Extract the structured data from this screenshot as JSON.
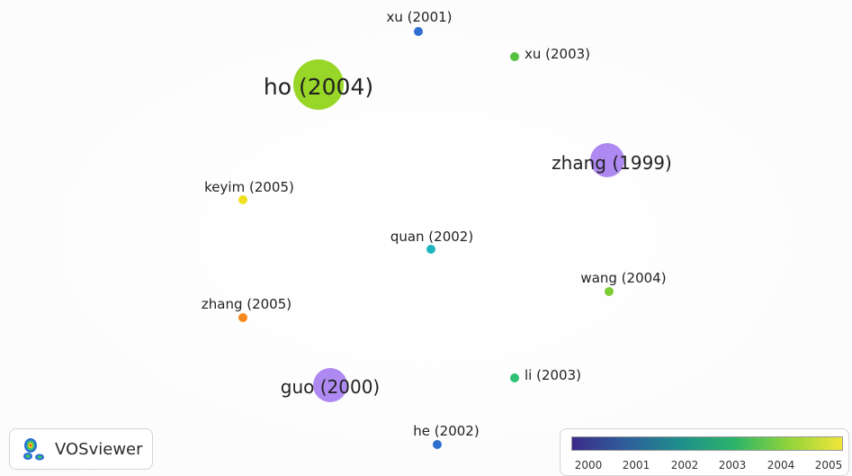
{
  "app": {
    "name": "VOSviewer"
  },
  "network": {
    "nodes": [
      {
        "label": "xu (2001)",
        "color": "#2f6fd0",
        "size": "small"
      },
      {
        "label": "xu (2003)",
        "color": "#56c13f",
        "size": "small"
      },
      {
        "label": "ho (2004)",
        "color": "#8fd416",
        "size": "large"
      },
      {
        "label": "zhang (1999)",
        "color": "#a77ff0",
        "size": "medium"
      },
      {
        "label": "keyim (2005)",
        "color": "#f0e020",
        "size": "small"
      },
      {
        "label": "quan (2002)",
        "color": "#1fb5bf",
        "size": "small"
      },
      {
        "label": "wang (2004)",
        "color": "#7ccd35",
        "size": "small"
      },
      {
        "label": "zhang (2005)",
        "color": "#f5891f",
        "size": "small"
      },
      {
        "label": "guo (2000)",
        "color": "#a77ff0",
        "size": "medium"
      },
      {
        "label": "li (2003)",
        "color": "#2ec073",
        "size": "small"
      },
      {
        "label": "he (2002)",
        "color": "#2f6fd0",
        "size": "small"
      }
    ]
  },
  "legend": {
    "ticks": [
      "2000",
      "2001",
      "2002",
      "2003",
      "2004",
      "2005"
    ],
    "gradient_colors": [
      "#3b2c8a",
      "#2f5e9b",
      "#1f8f8c",
      "#2bb36a",
      "#8fd43a",
      "#f2e53a"
    ]
  }
}
